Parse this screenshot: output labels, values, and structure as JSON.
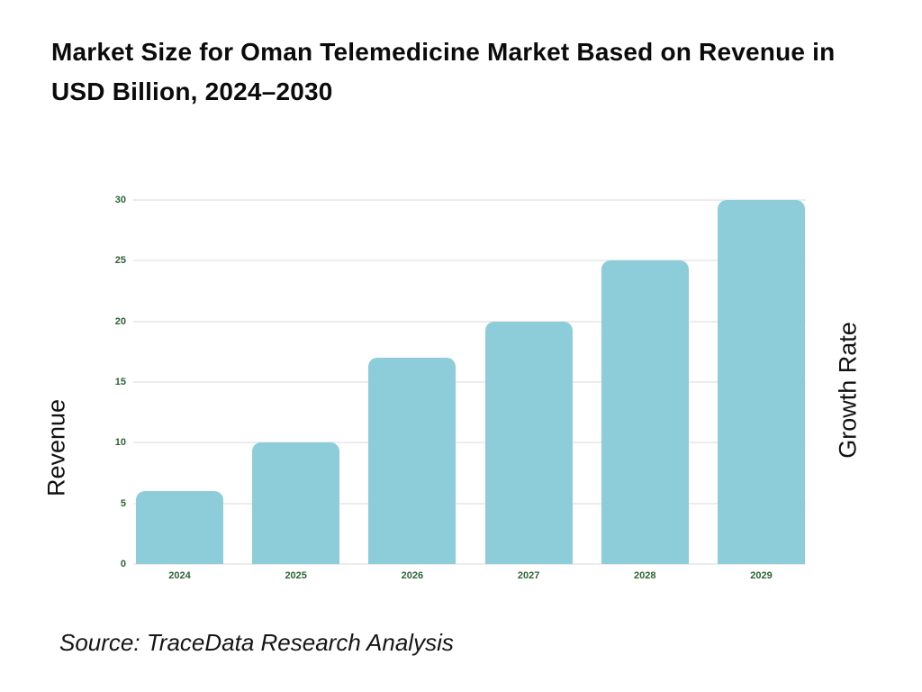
{
  "page": {
    "title": "Market Size for Oman Telemedicine Market Based on Revenue in USD Billion, 2024–2030",
    "source_note": "Source: TraceData Research Analysis"
  },
  "chart_data": {
    "type": "bar",
    "title": "Market Size for Oman Telemedicine Market Based on Revenue in USD Billion, 2024–2030",
    "categories": [
      "2024",
      "2025",
      "2026",
      "2027",
      "2028",
      "2029"
    ],
    "values": [
      6,
      10,
      17,
      20,
      25,
      30
    ],
    "series_name": "Revenue (USD Billion)",
    "xlabel": "",
    "ylabel_left": "Revenue",
    "ylabel_right": "Growth Rate",
    "ylim": [
      0,
      30
    ],
    "yticks": [
      0,
      5,
      10,
      15,
      20,
      25,
      30
    ],
    "grid": true,
    "legend": false,
    "bar_color": "#8DCDDA",
    "tick_label_color": "#2E6234",
    "gridline_color": "#ECECEC",
    "title_color": "#0B0B0B"
  }
}
